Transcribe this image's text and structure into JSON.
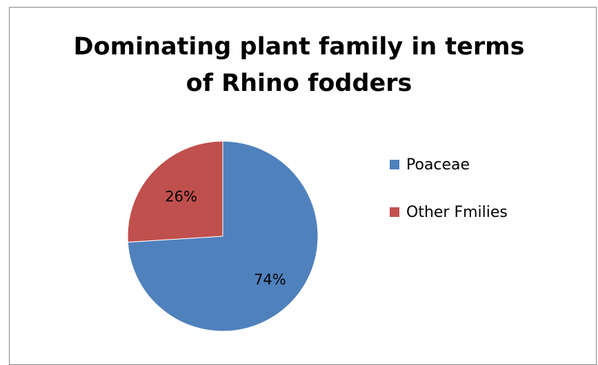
{
  "chart_data": {
    "type": "pie",
    "title_line1": "Dominating plant family in terms",
    "title_line2": "of Rhino fodders",
    "slices": [
      {
        "name": "Poaceae",
        "value": 74,
        "label": "74%",
        "color": "#4F81BD"
      },
      {
        "name": "Other Fmilies",
        "value": 26,
        "label": "26%",
        "color": "#C0504D"
      }
    ],
    "legend_position": "right"
  }
}
